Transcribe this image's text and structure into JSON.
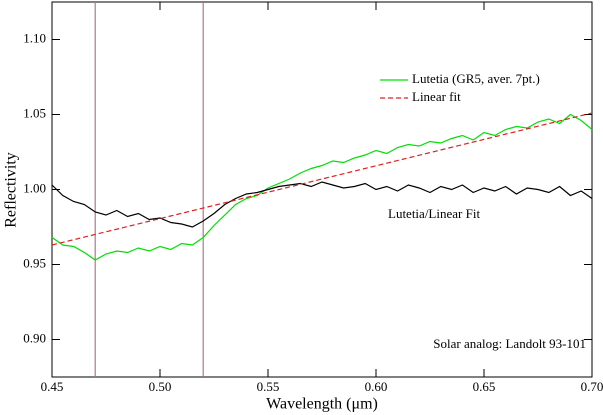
{
  "chart_data": {
    "type": "line",
    "x_label": "Wavelength (μm)",
    "y_label": "Reflectivity",
    "x": [
      0.45,
      0.455,
      0.46,
      0.465,
      0.47,
      0.475,
      0.48,
      0.485,
      0.49,
      0.495,
      0.5,
      0.505,
      0.51,
      0.515,
      0.52,
      0.525,
      0.53,
      0.535,
      0.54,
      0.545,
      0.55,
      0.555,
      0.56,
      0.565,
      0.57,
      0.575,
      0.58,
      0.585,
      0.59,
      0.595,
      0.6,
      0.605,
      0.61,
      0.615,
      0.62,
      0.625,
      0.63,
      0.635,
      0.64,
      0.645,
      0.65,
      0.655,
      0.66,
      0.665,
      0.67,
      0.675,
      0.68,
      0.685,
      0.69,
      0.695,
      0.7
    ],
    "series": [
      {
        "name": "Lutetia (GR5, aver. 7pt.)",
        "color": "#00e000",
        "values": [
          0.968,
          0.963,
          0.962,
          0.958,
          0.953,
          0.957,
          0.959,
          0.958,
          0.961,
          0.959,
          0.962,
          0.96,
          0.964,
          0.963,
          0.968,
          0.976,
          0.983,
          0.99,
          0.994,
          0.996,
          1.001,
          1.004,
          1.007,
          1.011,
          1.014,
          1.016,
          1.019,
          1.018,
          1.021,
          1.023,
          1.026,
          1.024,
          1.028,
          1.03,
          1.029,
          1.032,
          1.031,
          1.034,
          1.036,
          1.033,
          1.038,
          1.036,
          1.04,
          1.042,
          1.041,
          1.045,
          1.047,
          1.044,
          1.05,
          1.046,
          1.04
        ]
      },
      {
        "name": "Linear fit",
        "color": "#e02020",
        "dashed": true,
        "x": [
          0.45,
          0.7
        ],
        "values": [
          0.963,
          1.051
        ]
      },
      {
        "name": "Lutetia/Linear Fit",
        "color": "#000000",
        "values": [
          1.003,
          0.996,
          0.992,
          0.99,
          0.985,
          0.983,
          0.986,
          0.982,
          0.984,
          0.98,
          0.981,
          0.978,
          0.977,
          0.975,
          0.979,
          0.984,
          0.99,
          0.994,
          0.997,
          0.998,
          1.0,
          1.002,
          1.003,
          1.004,
          1.002,
          1.005,
          1.003,
          1.001,
          1.002,
          1.004,
          1.0,
          1.002,
          0.999,
          1.003,
          1.001,
          0.998,
          1.002,
          1.0,
          1.003,
          0.998,
          1.001,
          0.999,
          1.002,
          0.997,
          1.001,
          1.0,
          0.998,
          1.002,
          0.996,
          0.999,
          0.994
        ]
      }
    ],
    "vlines": [
      0.47,
      0.52
    ],
    "vline_color": "#b07888",
    "annotation": "Solar analog: Landolt 93-101",
    "xlim": [
      0.45,
      0.7
    ],
    "ylim": [
      0.875,
      1.125
    ],
    "xticks": [
      0.45,
      {
        "value": 0.5,
        "label": "0.50"
      },
      0.55,
      {
        "value": 0.6,
        "label": "0.60"
      },
      0.65,
      {
        "value": 0.7,
        "label": "0.70"
      }
    ],
    "yticks": [
      {
        "value": 0.9,
        "label": "0.90"
      },
      0.95,
      {
        "value": 1.0,
        "label": "1.00"
      },
      1.05,
      {
        "value": 1.1,
        "label": "1.10"
      }
    ]
  }
}
